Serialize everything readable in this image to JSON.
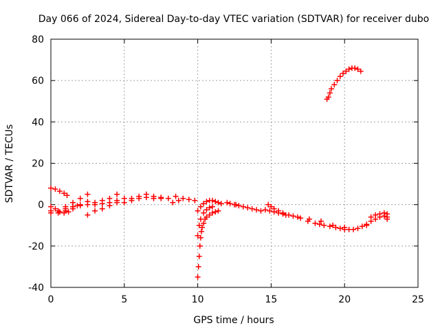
{
  "chart_data": {
    "type": "scatter",
    "title": "Day 066 of 2024, Sidereal Day-to-day VTEC variation (SDTVAR) for receiver dubo",
    "xlabel": "GPS time / hours",
    "ylabel": "SDTVAR / TECUs",
    "xlim": [
      0,
      25
    ],
    "ylim": [
      -40,
      80
    ],
    "xticks": [
      0,
      5,
      10,
      15,
      20,
      25
    ],
    "yticks": [
      -40,
      -20,
      0,
      20,
      40,
      60,
      80
    ],
    "grid": true,
    "marker": "+",
    "series": [
      {
        "name": "SDTVAR",
        "color": "#ff0000",
        "points": [
          [
            0.0,
            8
          ],
          [
            0.3,
            7.5
          ],
          [
            0.6,
            6.5
          ],
          [
            0.9,
            5.5
          ],
          [
            1.1,
            4.5
          ],
          [
            0.0,
            -1
          ],
          [
            0.3,
            -2
          ],
          [
            0.6,
            -3.5
          ],
          [
            0.9,
            -4
          ],
          [
            1.2,
            -3.5
          ],
          [
            1.5,
            -2
          ],
          [
            1.8,
            -0.5
          ],
          [
            0.0,
            -3
          ],
          [
            0.5,
            -4
          ],
          [
            1.0,
            -3
          ],
          [
            1.5,
            -1
          ],
          [
            2.0,
            0
          ],
          [
            2.5,
            1.5
          ],
          [
            0.0,
            -4
          ],
          [
            0.5,
            -3
          ],
          [
            1.0,
            -2
          ],
          [
            1.5,
            -1
          ],
          [
            2.0,
            -0.5
          ],
          [
            2.5,
            0
          ],
          [
            3.0,
            1
          ],
          [
            3.5,
            0.5
          ],
          [
            4.0,
            1
          ],
          [
            4.5,
            2
          ],
          [
            1.0,
            -1
          ],
          [
            1.5,
            1
          ],
          [
            2.0,
            3
          ],
          [
            2.5,
            5
          ],
          [
            2.5,
            -5
          ],
          [
            3.0,
            -3
          ],
          [
            3.5,
            -2
          ],
          [
            4.0,
            -0.5
          ],
          [
            4.5,
            1
          ],
          [
            5.0,
            3
          ],
          [
            3.0,
            0
          ],
          [
            3.5,
            2
          ],
          [
            4.0,
            3
          ],
          [
            4.5,
            5
          ],
          [
            5.0,
            1
          ],
          [
            5.5,
            2
          ],
          [
            6.0,
            3
          ],
          [
            6.5,
            5
          ],
          [
            7.0,
            4
          ],
          [
            7.5,
            3.5
          ],
          [
            8.0,
            3
          ],
          [
            8.5,
            4
          ],
          [
            5.5,
            3
          ],
          [
            6.0,
            4
          ],
          [
            6.5,
            3.5
          ],
          [
            7.0,
            3
          ],
          [
            7.5,
            3
          ],
          [
            8.3,
            1
          ],
          [
            8.7,
            2
          ],
          [
            9.0,
            3
          ],
          [
            9.4,
            2.5
          ],
          [
            9.8,
            2
          ],
          [
            10.0,
            -35
          ],
          [
            10.05,
            -30
          ],
          [
            10.1,
            -25
          ],
          [
            10.15,
            -20
          ],
          [
            10.2,
            -16
          ],
          [
            10.25,
            -13
          ],
          [
            10.3,
            -11
          ],
          [
            10.4,
            -9
          ],
          [
            10.5,
            -7
          ],
          [
            10.6,
            -6
          ],
          [
            10.8,
            -5
          ],
          [
            11.0,
            -4
          ],
          [
            11.2,
            -3.5
          ],
          [
            11.4,
            -3
          ],
          [
            10.0,
            -15
          ],
          [
            10.1,
            -10
          ],
          [
            10.2,
            -7
          ],
          [
            10.4,
            -4
          ],
          [
            10.6,
            -2.5
          ],
          [
            10.8,
            -1.5
          ],
          [
            11.0,
            -1
          ],
          [
            10.0,
            -3
          ],
          [
            10.2,
            -1
          ],
          [
            10.4,
            0.5
          ],
          [
            10.6,
            1.5
          ],
          [
            10.8,
            2
          ],
          [
            11.0,
            2
          ],
          [
            11.2,
            1.5
          ],
          [
            11.4,
            1
          ],
          [
            11.6,
            0.5
          ],
          [
            12.5,
            0
          ],
          [
            12.8,
            -0.5
          ],
          [
            13.1,
            -1
          ],
          [
            13.4,
            -1.5
          ],
          [
            13.7,
            -2
          ],
          [
            14.0,
            -2.5
          ],
          [
            14.3,
            -3
          ],
          [
            14.6,
            -2.5
          ],
          [
            14.9,
            -3
          ],
          [
            15.2,
            -3.5
          ],
          [
            15.5,
            -4
          ],
          [
            15.8,
            -4.5
          ],
          [
            12.0,
            1
          ],
          [
            12.2,
            0.5
          ],
          [
            12.6,
            0
          ],
          [
            14.8,
            0
          ],
          [
            15.0,
            -1
          ],
          [
            15.2,
            -2
          ],
          [
            15.5,
            -3
          ],
          [
            15.8,
            -4
          ],
          [
            16.2,
            -5
          ],
          [
            16.5,
            -5.5
          ],
          [
            17.0,
            -6.5
          ],
          [
            17.5,
            -8
          ],
          [
            18.0,
            -9
          ],
          [
            18.3,
            -9.5
          ],
          [
            18.6,
            -10
          ],
          [
            19.0,
            -10.5
          ],
          [
            19.4,
            -11
          ],
          [
            19.7,
            -11.5
          ],
          [
            20.0,
            -12
          ],
          [
            20.3,
            -12
          ],
          [
            20.6,
            -12
          ],
          [
            20.9,
            -11.5
          ],
          [
            21.2,
            -10.5
          ],
          [
            21.5,
            -9.5
          ],
          [
            16.0,
            -5
          ],
          [
            16.8,
            -6
          ],
          [
            17.6,
            -7
          ],
          [
            18.4,
            -8
          ],
          [
            19.2,
            -10
          ],
          [
            20.0,
            -11
          ],
          [
            21.5,
            -10
          ],
          [
            21.8,
            -8
          ],
          [
            22.1,
            -7
          ],
          [
            22.4,
            -6
          ],
          [
            22.7,
            -5.5
          ],
          [
            22.9,
            -6
          ],
          [
            22.9,
            -7
          ],
          [
            21.8,
            -6
          ],
          [
            22.1,
            -5
          ],
          [
            22.4,
            -4.5
          ],
          [
            22.7,
            -4
          ],
          [
            22.9,
            -4.5
          ],
          [
            18.8,
            51
          ],
          [
            18.9,
            52
          ],
          [
            19.0,
            54
          ],
          [
            19.1,
            56
          ],
          [
            19.3,
            58
          ],
          [
            19.5,
            60
          ],
          [
            19.7,
            62
          ],
          [
            19.9,
            63.5
          ],
          [
            20.1,
            64.5
          ],
          [
            20.3,
            65.5
          ],
          [
            20.5,
            66
          ],
          [
            20.7,
            66
          ],
          [
            20.9,
            65.5
          ],
          [
            21.1,
            64.5
          ]
        ]
      }
    ]
  }
}
